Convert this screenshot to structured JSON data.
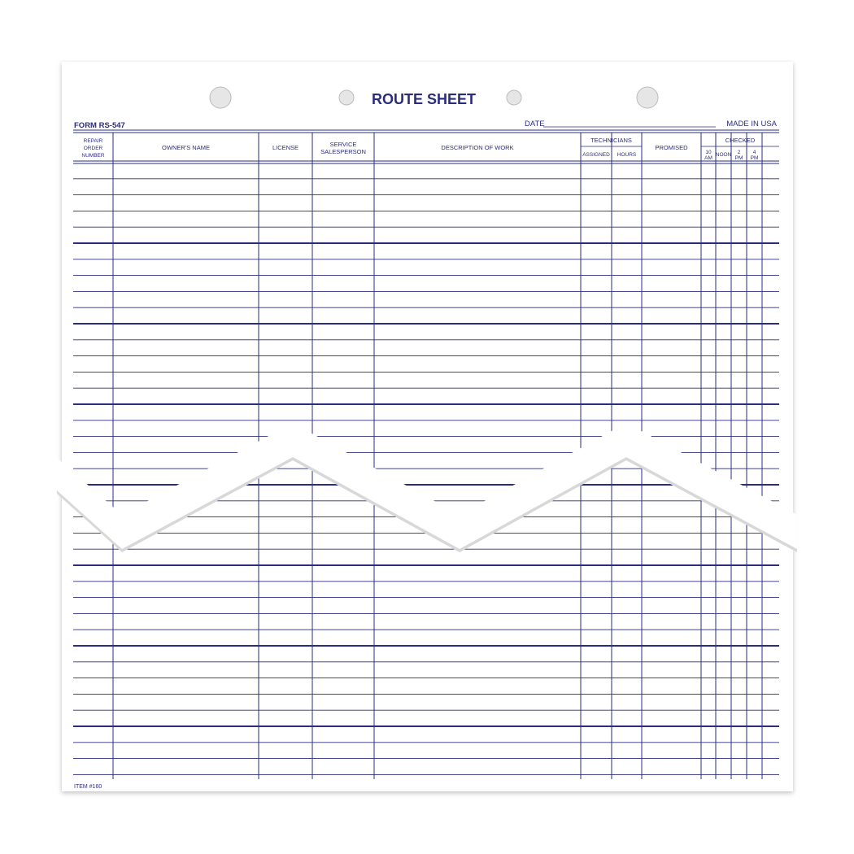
{
  "form": {
    "title": "ROUTE SHEET",
    "form_number": "FORM RS-547",
    "date_label": "DATE",
    "made_in": "MADE IN USA",
    "item_number": "ITEM #160",
    "ink_color": "#2b2d7c"
  },
  "columns": {
    "repair": [
      "REPAIR",
      "ORDER",
      "NUMBER"
    ],
    "owner": "OWNER'S NAME",
    "license": "LICENSE",
    "service": [
      "SERVICE",
      "SALESPERSON"
    ],
    "description": "DESCRIPTION OF WORK",
    "technicians": "TECHNICIANS",
    "assigned": "ASSIGNED",
    "hours": "HOURS",
    "promised": "PROMISED",
    "checked": "CHECKED",
    "t10": [
      "10",
      "AM"
    ],
    "noon": "NOON",
    "t2": [
      "2",
      "PM"
    ],
    "t4": [
      "4",
      "PM"
    ]
  }
}
